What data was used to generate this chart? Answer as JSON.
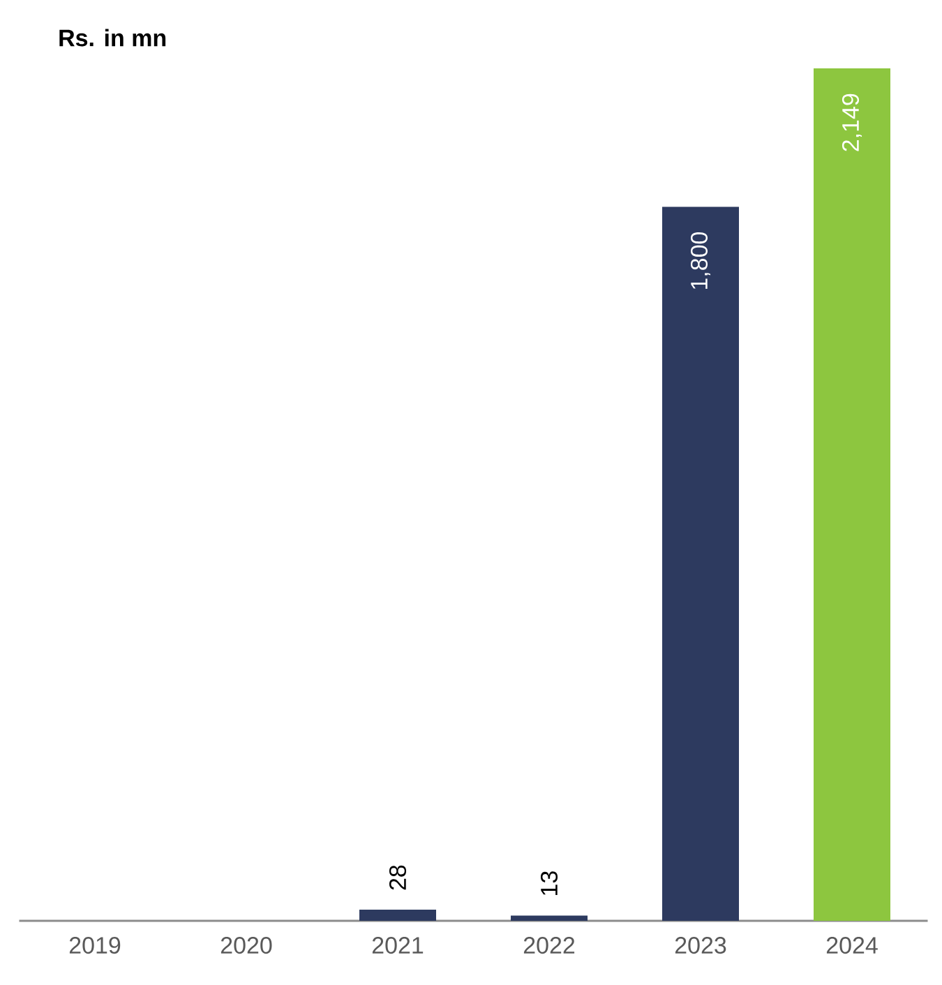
{
  "chart_data": {
    "type": "bar",
    "ylabel": "Rs. in mn",
    "categories": [
      "2019",
      "2020",
      "2021",
      "2022",
      "2023",
      "2024"
    ],
    "values": [
      null,
      null,
      28,
      13,
      1800,
      2149
    ],
    "colors": [
      null,
      null,
      "#2d3a5f",
      "#2d3a5f",
      "#2d3a5f",
      "#8dc63f"
    ],
    "value_labels": [
      null,
      null,
      "28",
      "13",
      "1,800",
      "2,149"
    ]
  }
}
